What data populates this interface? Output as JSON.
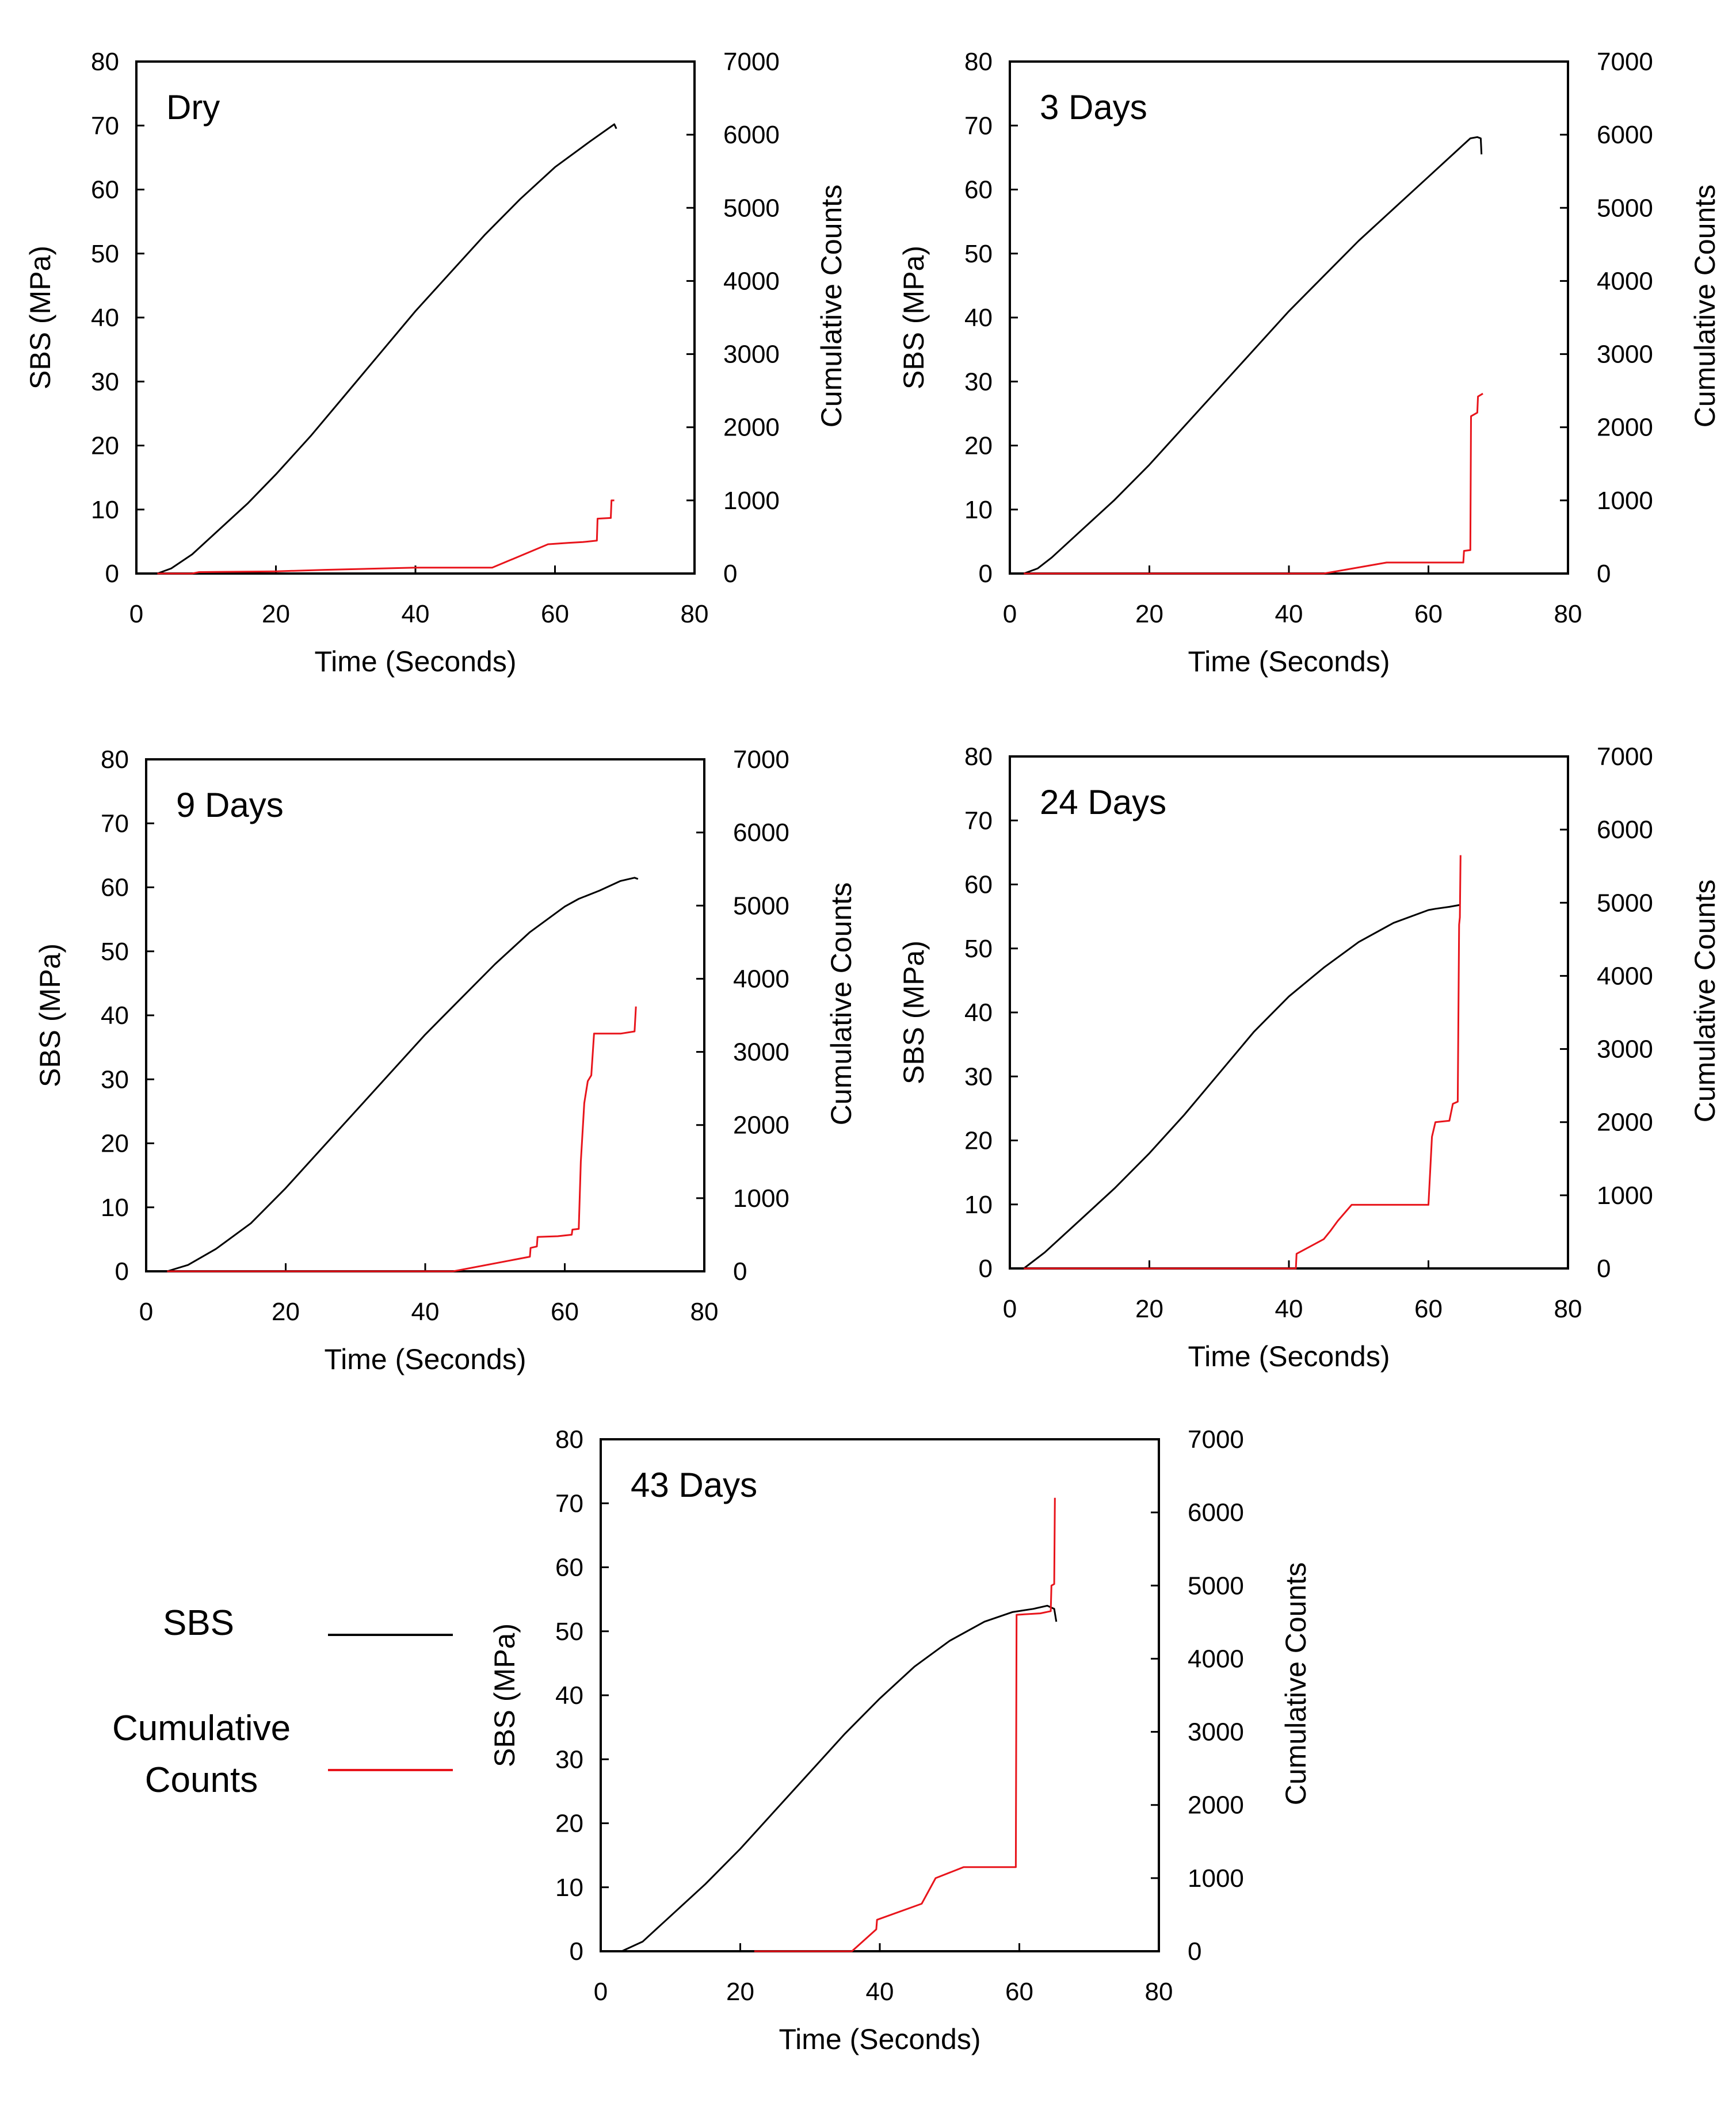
{
  "legend": {
    "sbs_label": "SBS",
    "counts_label_line1": "Cumulative",
    "counts_label_line2": "Counts",
    "sbs_color": "#000000",
    "counts_color": "#e8141b"
  },
  "chart_data": [
    {
      "type": "line",
      "title": "Dry",
      "xlabel": "Time (Seconds)",
      "ylabel": "SBS (MPa)",
      "y2label": "Cumulative Counts",
      "xlim": [
        0,
        80
      ],
      "ylim": [
        0,
        80
      ],
      "y2lim": [
        0,
        7000
      ],
      "xticks": [
        "0",
        "20",
        "40",
        "60",
        "80"
      ],
      "yticks": [
        "0",
        "10",
        "20",
        "30",
        "40",
        "50",
        "60",
        "70",
        "80"
      ],
      "y2ticks": [
        "0",
        "1000",
        "2000",
        "3000",
        "4000",
        "5000",
        "6000",
        "7000"
      ],
      "series": [
        {
          "name": "SBS",
          "axis": "left",
          "x": [
            3,
            5,
            8,
            12,
            16,
            20,
            25,
            30,
            35,
            40,
            45,
            50,
            55,
            60,
            65,
            68.5,
            68.8
          ],
          "values": [
            0,
            0.8,
            3,
            7,
            11,
            15.5,
            21.5,
            28,
            34.5,
            41,
            47,
            53,
            58.5,
            63.5,
            67.5,
            70.2,
            69.5
          ]
        },
        {
          "name": "Cumulative Counts",
          "axis": "right",
          "x": [
            3,
            8,
            9,
            20,
            27,
            40,
            51,
            59,
            62,
            64,
            66,
            66.1,
            68,
            68.1,
            68.5
          ],
          "values": [
            0,
            0,
            20,
            30,
            50,
            80,
            80,
            400,
            420,
            430,
            450,
            750,
            760,
            1000,
            1000
          ]
        }
      ]
    },
    {
      "type": "line",
      "title": "3 Days",
      "xlabel": "Time (Seconds)",
      "ylabel": "SBS (MPa)",
      "y2label": "Cumulative Counts",
      "xlim": [
        0,
        80
      ],
      "ylim": [
        0,
        80
      ],
      "y2lim": [
        0,
        7000
      ],
      "xticks": [
        "0",
        "20",
        "40",
        "60",
        "80"
      ],
      "yticks": [
        "0",
        "10",
        "20",
        "30",
        "40",
        "50",
        "60",
        "70",
        "80"
      ],
      "y2ticks": [
        "0",
        "1000",
        "2000",
        "3000",
        "4000",
        "5000",
        "6000",
        "7000"
      ],
      "series": [
        {
          "name": "SBS",
          "axis": "left",
          "x": [
            2,
            4,
            6,
            10,
            15,
            20,
            25,
            30,
            35,
            40,
            45,
            50,
            55,
            60,
            63,
            65,
            66,
            67,
            67.5,
            67.6
          ],
          "values": [
            0,
            0.8,
            2.5,
            6.5,
            11.5,
            17,
            23,
            29,
            35,
            41,
            46.5,
            52,
            57,
            62,
            65,
            67,
            68,
            68.2,
            68,
            65.5
          ]
        },
        {
          "name": "Cumulative Counts",
          "axis": "right",
          "x": [
            2,
            45,
            54,
            65,
            65.1,
            66,
            66.1,
            67,
            67.1,
            67.8
          ],
          "values": [
            0,
            0,
            150,
            150,
            310,
            320,
            2150,
            2200,
            2420,
            2460
          ]
        }
      ]
    },
    {
      "type": "line",
      "title": "9 Days",
      "xlabel": "Time (Seconds)",
      "ylabel": "SBS (MPa)",
      "y2label": "Cumulative Counts",
      "xlim": [
        0,
        80
      ],
      "ylim": [
        0,
        80
      ],
      "y2lim": [
        0,
        7000
      ],
      "xticks": [
        "0",
        "20",
        "40",
        "60",
        "80"
      ],
      "yticks": [
        "0",
        "10",
        "20",
        "30",
        "40",
        "50",
        "60",
        "70",
        "80"
      ],
      "y2ticks": [
        "0",
        "1000",
        "2000",
        "3000",
        "4000",
        "5000",
        "6000",
        "7000"
      ],
      "series": [
        {
          "name": "SBS",
          "axis": "left",
          "x": [
            3,
            6,
            10,
            15,
            20,
            25,
            30,
            35,
            40,
            45,
            50,
            55,
            60,
            62,
            65,
            68,
            70,
            70.5
          ],
          "values": [
            0,
            1,
            3.5,
            7.5,
            13,
            19,
            25,
            31,
            37,
            42.5,
            48,
            53,
            57,
            58.2,
            59.5,
            61,
            61.5,
            61.3
          ]
        },
        {
          "name": "Cumulative Counts",
          "axis": "right",
          "x": [
            3,
            44,
            55,
            55.1,
            56,
            56.1,
            59,
            61,
            61.1,
            62,
            62.3,
            62.8,
            63.3,
            63.8,
            64.2,
            68,
            70,
            70.2
          ],
          "values": [
            0,
            0,
            200,
            320,
            340,
            470,
            480,
            500,
            570,
            580,
            1500,
            2300,
            2600,
            2680,
            3250,
            3250,
            3280,
            3620
          ]
        }
      ]
    },
    {
      "type": "line",
      "title": "24 Days",
      "xlabel": "Time (Seconds)",
      "ylabel": "SBS (MPa)",
      "y2label": "Cumulative Counts",
      "xlim": [
        0,
        80
      ],
      "ylim": [
        0,
        80
      ],
      "y2lim": [
        0,
        7000
      ],
      "xticks": [
        "0",
        "20",
        "40",
        "60",
        "80"
      ],
      "yticks": [
        "0",
        "10",
        "20",
        "30",
        "40",
        "50",
        "60",
        "70",
        "80"
      ],
      "y2ticks": [
        "0",
        "1000",
        "2000",
        "3000",
        "4000",
        "5000",
        "6000",
        "7000"
      ],
      "series": [
        {
          "name": "SBS",
          "axis": "left",
          "x": [
            2,
            5,
            10,
            15,
            20,
            25,
            30,
            35,
            40,
            45,
            50,
            55,
            60,
            61,
            63,
            64.5
          ],
          "values": [
            0,
            2.5,
            7.5,
            12.5,
            18,
            24,
            30.5,
            37,
            42.5,
            47,
            51,
            54,
            56,
            56.2,
            56.5,
            56.8
          ]
        },
        {
          "name": "Cumulative Counts",
          "axis": "right",
          "x": [
            2,
            41,
            41.1,
            45,
            46,
            47,
            48,
            49,
            60,
            60.5,
            61,
            63,
            63.5,
            64.2,
            64.4,
            64.5,
            64.6
          ],
          "values": [
            0,
            0,
            200,
            400,
            520,
            650,
            760,
            870,
            870,
            1800,
            2000,
            2020,
            2250,
            2280,
            4700,
            4800,
            5650
          ]
        }
      ]
    },
    {
      "type": "line",
      "title": "43 Days",
      "xlabel": "Time (Seconds)",
      "ylabel": "SBS (MPa)",
      "y2label": "Cumulative Counts",
      "xlim": [
        0,
        80
      ],
      "ylim": [
        0,
        80
      ],
      "y2lim": [
        0,
        7000
      ],
      "xticks": [
        "0",
        "20",
        "40",
        "60",
        "80"
      ],
      "yticks": [
        "0",
        "10",
        "20",
        "30",
        "40",
        "50",
        "60",
        "70",
        "80"
      ],
      "y2ticks": [
        "0",
        "1000",
        "2000",
        "3000",
        "4000",
        "5000",
        "6000",
        "7000"
      ],
      "series": [
        {
          "name": "SBS",
          "axis": "left",
          "x": [
            3,
            6,
            10,
            15,
            20,
            25,
            30,
            35,
            40,
            45,
            50,
            55,
            59,
            62,
            64,
            65,
            65.3
          ],
          "values": [
            0,
            1.5,
            5.5,
            10.5,
            16,
            22,
            28,
            34,
            39.5,
            44.5,
            48.5,
            51.5,
            53,
            53.5,
            54,
            53.5,
            51.5
          ]
        },
        {
          "name": "Cumulative Counts",
          "axis": "right",
          "x": [
            22,
            36,
            39.5,
            39.6,
            46,
            48,
            52,
            59.5,
            59.6,
            63,
            64.5,
            64.6,
            65,
            65.1
          ],
          "values": [
            0,
            0,
            300,
            430,
            650,
            1000,
            1150,
            1150,
            4600,
            4620,
            4650,
            5000,
            5020,
            6200
          ]
        }
      ]
    }
  ]
}
